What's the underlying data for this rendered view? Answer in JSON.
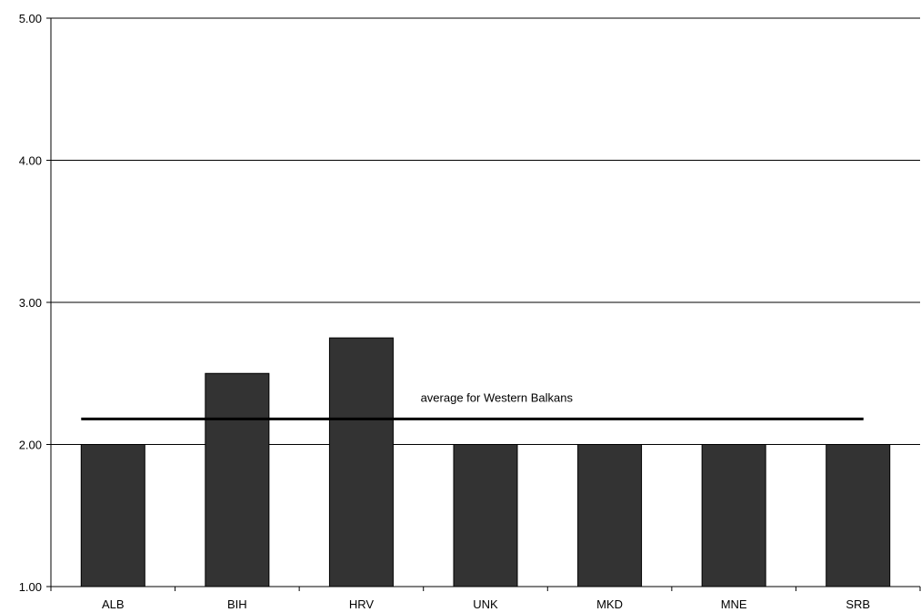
{
  "chart_data": {
    "type": "bar",
    "categories": [
      "ALB",
      "BIH",
      "HRV",
      "UNK",
      "MKD",
      "MNE",
      "SRB"
    ],
    "values": [
      2.0,
      2.5,
      2.75,
      2.0,
      2.0,
      2.0,
      2.0
    ],
    "ylim": [
      1.0,
      5.0
    ],
    "yticks": [
      "1.00",
      "2.00",
      "3.00",
      "4.00",
      "5.00"
    ],
    "title": "",
    "xlabel": "",
    "ylabel": "",
    "grid": true,
    "reference_line": {
      "value": 2.18,
      "label": "average for Western Balkans"
    },
    "colors": {
      "bar": "#333333",
      "bar_stroke": "#000000",
      "axis": "#000000",
      "grid": "#000000",
      "reference_line": "#000000"
    }
  }
}
